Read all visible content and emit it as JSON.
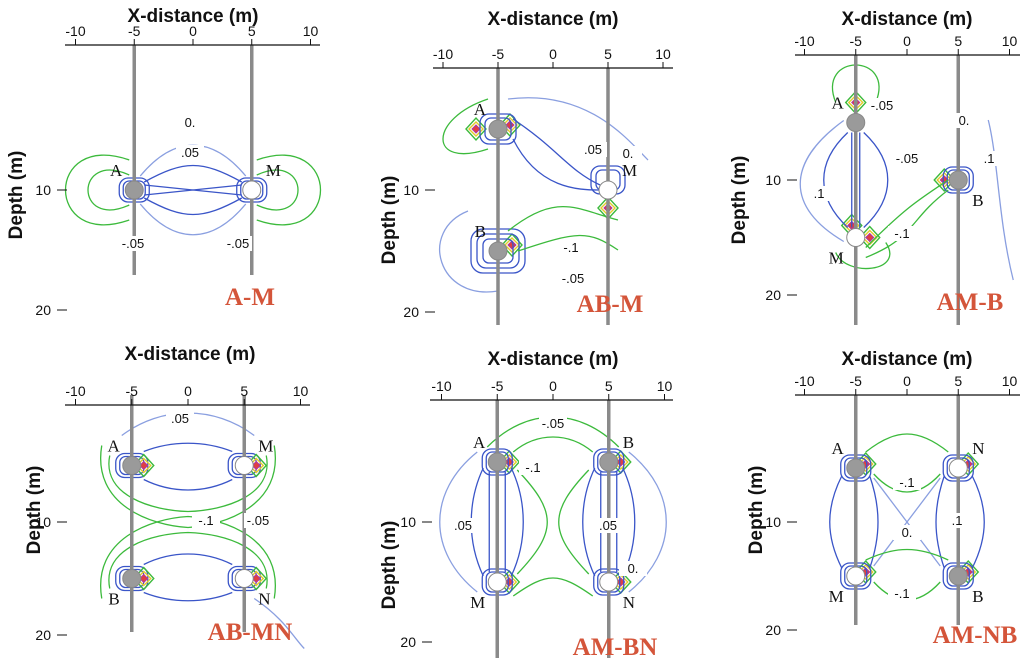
{
  "colors": {
    "contour_blue": "#3a55c8",
    "contour_lightblue": "#8a9fe0",
    "contour_green": "#3cba3c",
    "contour_yellow": "#e3cc2a",
    "contour_red": "#e04040",
    "contour_magenta": "#b03aa0",
    "borehole": "#8a8a8a",
    "electrode_current": "#9a9a9a",
    "electrode_potential": "#ffffff",
    "label_red": "#d4553a"
  },
  "panels": [
    {
      "x_axis_label": "X-distance (m)",
      "y_axis_label": "Depth (m)",
      "x_ticks": [
        "-10",
        "-5",
        "0",
        "5",
        "10"
      ],
      "depth_ticks": [
        "10",
        "20"
      ],
      "configuration": "A-M",
      "electrodes": [
        {
          "label": "A",
          "x": -5,
          "depth": 10,
          "kind": "current"
        },
        {
          "label": "M",
          "x": 5,
          "depth": 10,
          "kind": "potential"
        }
      ],
      "contour_labels": [
        "0.",
        ".05",
        "-.05",
        "-.05"
      ]
    },
    {
      "x_axis_label": "X-distance (m)",
      "y_axis_label": "Depth (m)",
      "x_ticks": [
        "-10",
        "-5",
        "0",
        "5",
        "10"
      ],
      "depth_ticks": [
        "10",
        "20"
      ],
      "configuration": "AB-M",
      "electrodes": [
        {
          "label": "A",
          "x": -5,
          "depth": 5,
          "kind": "current"
        },
        {
          "label": "M",
          "x": 5,
          "depth": 10,
          "kind": "potential"
        },
        {
          "label": "B",
          "x": -5,
          "depth": 15,
          "kind": "current"
        }
      ],
      "contour_labels": [
        ".05",
        "0.",
        "-.1",
        "-.05"
      ]
    },
    {
      "x_axis_label": "X-distance (m)",
      "y_axis_label": "Depth (m)",
      "x_ticks": [
        "-10",
        "-5",
        "0",
        "5",
        "10"
      ],
      "depth_ticks": [
        "10",
        "20"
      ],
      "configuration": "AM-B",
      "electrodes": [
        {
          "label": "A",
          "x": -5,
          "depth": 5,
          "kind": "current"
        },
        {
          "label": "M",
          "x": -5,
          "depth": 15,
          "kind": "potential"
        },
        {
          "label": "B",
          "x": 5,
          "depth": 10,
          "kind": "current"
        }
      ],
      "contour_labels": [
        "-.05",
        "0.",
        "-.05",
        ".1",
        ".1",
        "-.1"
      ]
    },
    {
      "x_axis_label": "X-distance (m)",
      "y_axis_label": "Depth (m)",
      "x_ticks": [
        "-10",
        "-5",
        "0",
        "5",
        "10"
      ],
      "depth_ticks": [
        "10",
        "20"
      ],
      "configuration": "AB-MN",
      "electrodes": [
        {
          "label": "A",
          "x": -5,
          "depth": 5,
          "kind": "current"
        },
        {
          "label": "M",
          "x": 5,
          "depth": 5,
          "kind": "potential"
        },
        {
          "label": "B",
          "x": -5,
          "depth": 15,
          "kind": "current"
        },
        {
          "label": "N",
          "x": 5,
          "depth": 15,
          "kind": "potential"
        }
      ],
      "contour_labels": [
        ".05",
        "-.1",
        "-.05"
      ]
    },
    {
      "x_axis_label": "X-distance (m)",
      "y_axis_label": "Depth (m)",
      "x_ticks": [
        "-10",
        "-5",
        "0",
        "5",
        "10"
      ],
      "depth_ticks": [
        "10",
        "20"
      ],
      "configuration": "AM-BN",
      "electrodes": [
        {
          "label": "A",
          "x": -5,
          "depth": 5,
          "kind": "current"
        },
        {
          "label": "B",
          "x": 5,
          "depth": 5,
          "kind": "current"
        },
        {
          "label": "M",
          "x": -5,
          "depth": 15,
          "kind": "potential"
        },
        {
          "label": "N",
          "x": 5,
          "depth": 15,
          "kind": "potential"
        }
      ],
      "contour_labels": [
        "-.05",
        "-.1",
        ".05",
        ".05",
        "0."
      ]
    },
    {
      "x_axis_label": "X-distance (m)",
      "y_axis_label": "Depth (m)",
      "x_ticks": [
        "-10",
        "-5",
        "0",
        "5",
        "10"
      ],
      "depth_ticks": [
        "10",
        "20"
      ],
      "configuration": "AM-NB",
      "electrodes": [
        {
          "label": "A",
          "x": -5,
          "depth": 5,
          "kind": "current"
        },
        {
          "label": "N",
          "x": 5,
          "depth": 5,
          "kind": "potential"
        },
        {
          "label": "M",
          "x": -5,
          "depth": 15,
          "kind": "potential"
        },
        {
          "label": "B",
          "x": 5,
          "depth": 15,
          "kind": "current"
        }
      ],
      "contour_labels": [
        "-.1",
        "0.",
        ".1",
        "-.1"
      ]
    }
  ]
}
